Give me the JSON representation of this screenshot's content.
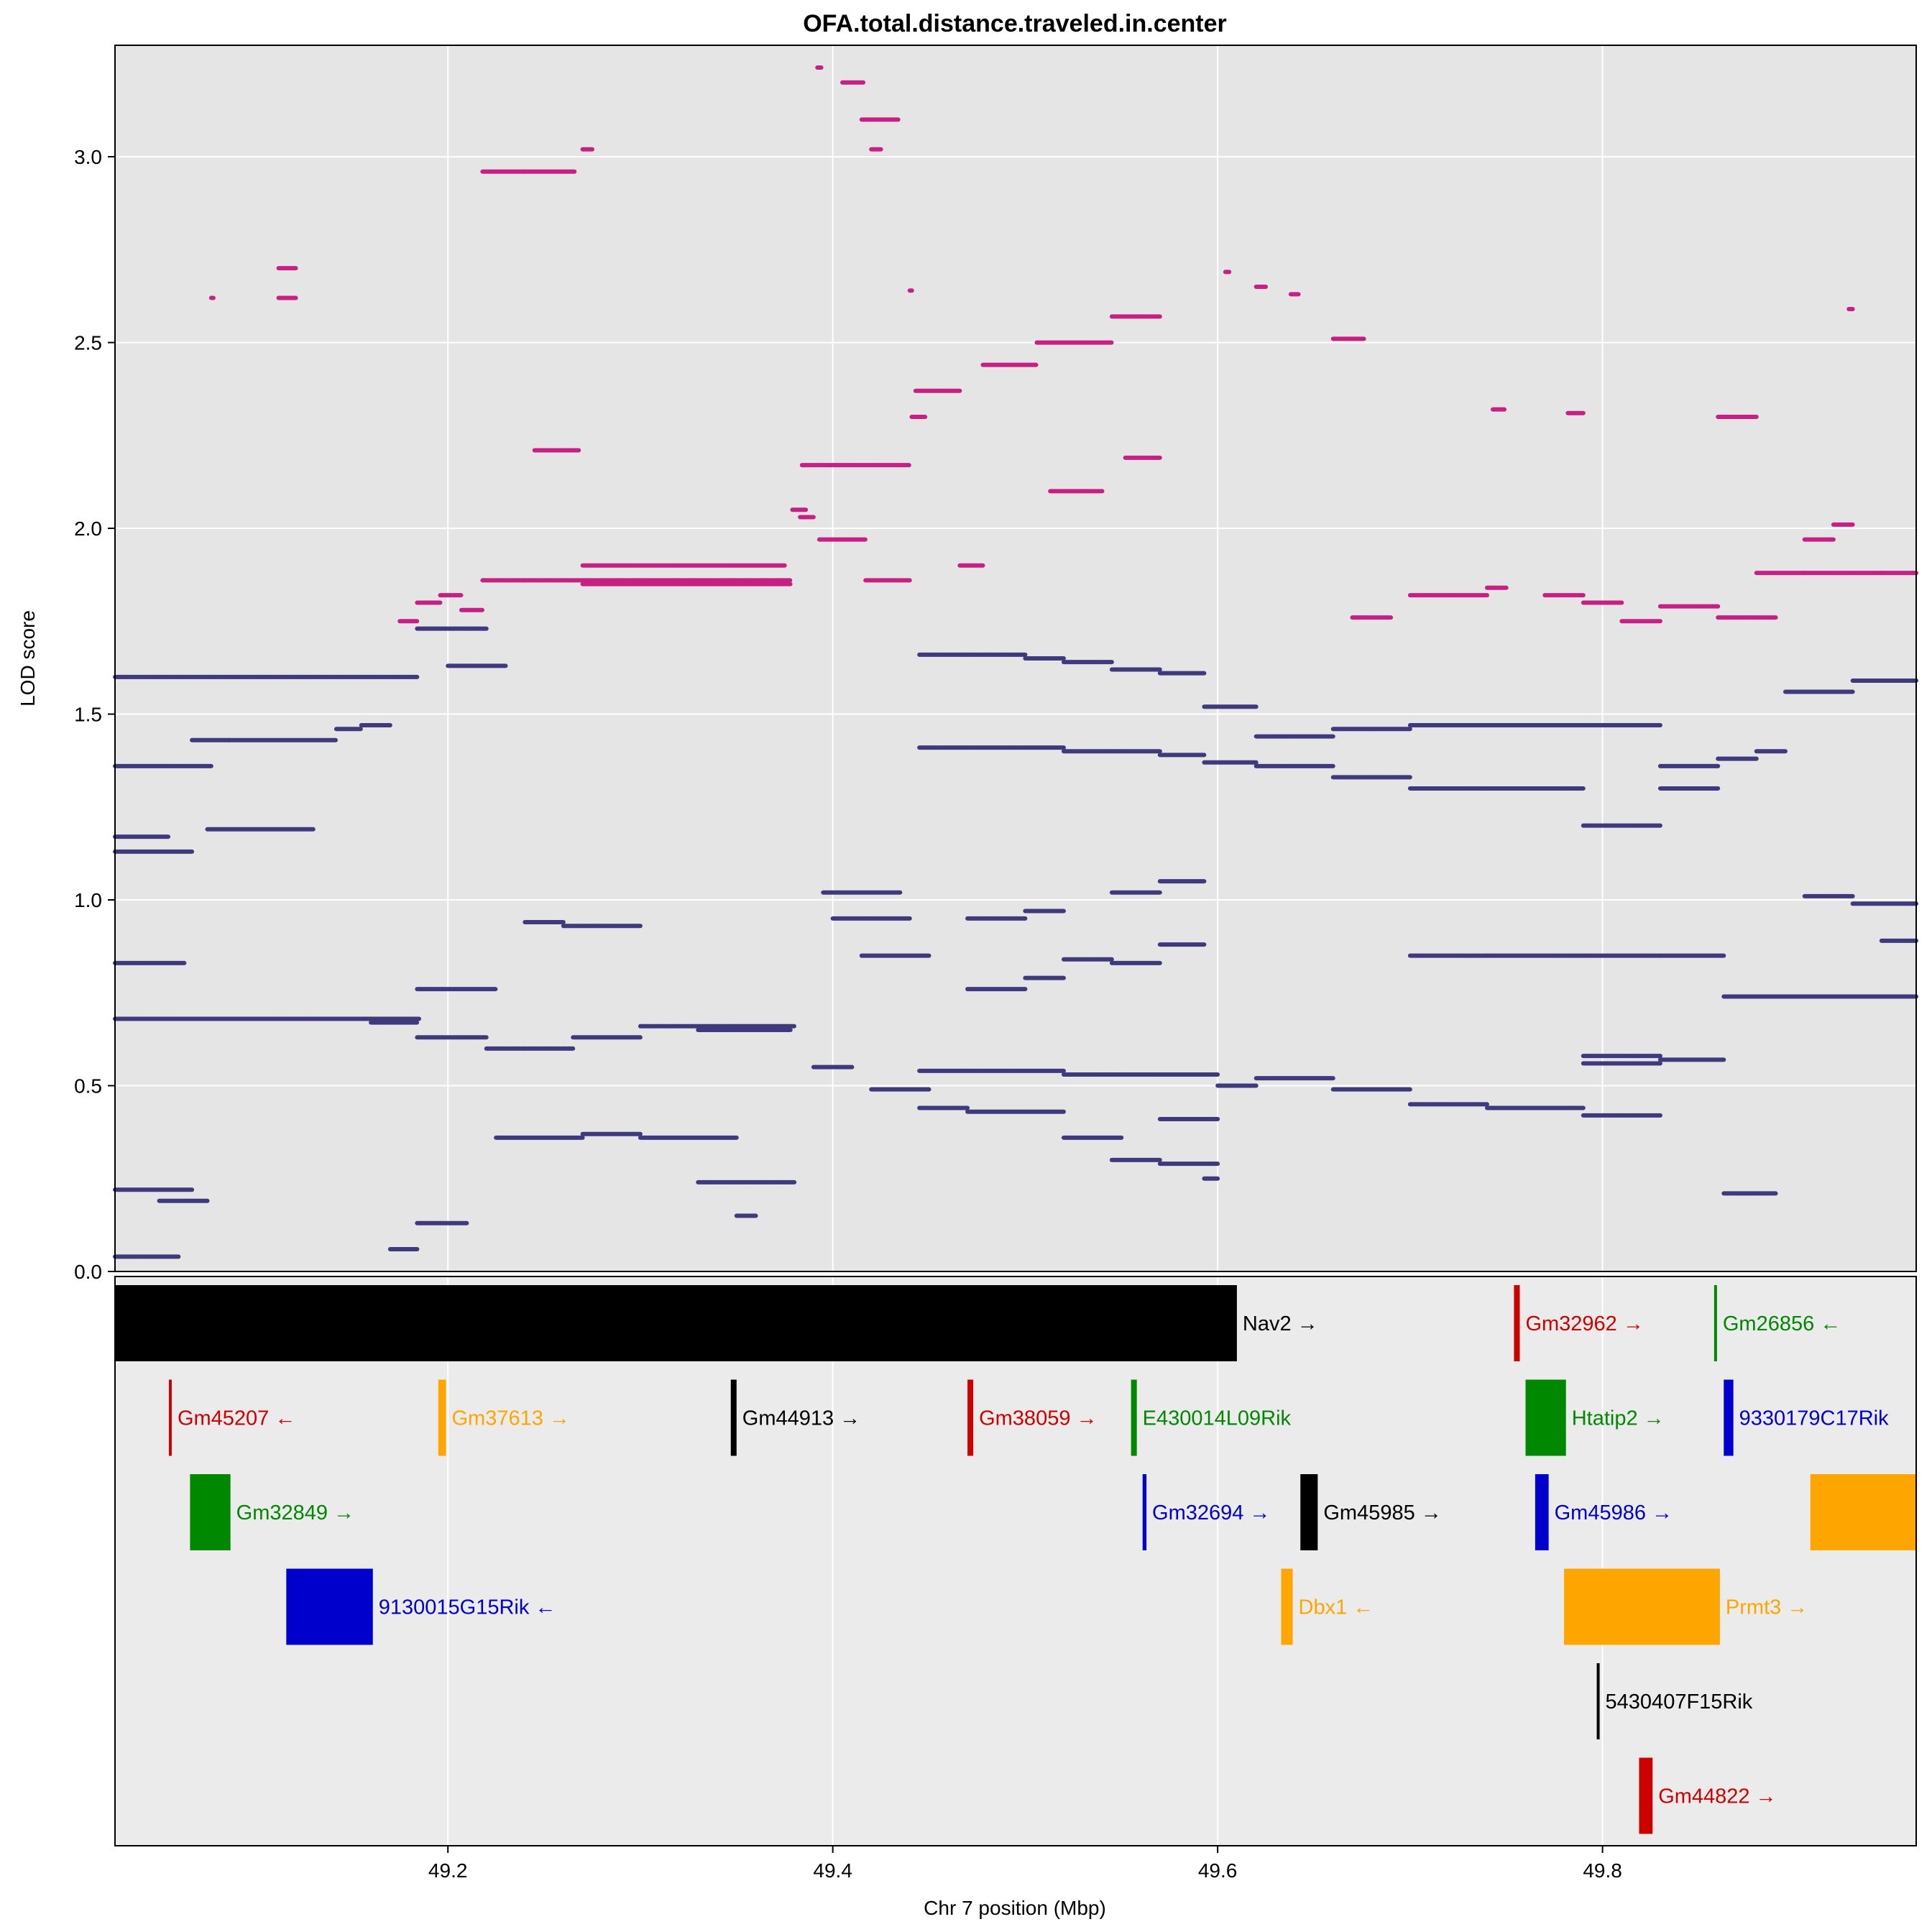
{
  "chart_data": {
    "type": "scatter",
    "title": "OFA.total.distance.traveled.in.center",
    "xlabel": "Chr 7 position (Mbp)",
    "ylabel": "LOD score",
    "xlim": [
      49.027,
      49.963
    ],
    "ylim": [
      0,
      3.3
    ],
    "x_ticks": [
      "49.2",
      "49.4",
      "49.6",
      "49.8"
    ],
    "x_tick_values": [
      49.2,
      49.4,
      49.6,
      49.8
    ],
    "y_ticks": [
      "0.0",
      "0.5",
      "1.0",
      "1.5",
      "2.0",
      "2.5",
      "3.0"
    ],
    "y_tick_values": [
      0,
      0.5,
      1.0,
      1.5,
      2.0,
      2.5,
      3.0
    ],
    "grid": true,
    "legend": "none",
    "colors": {
      "panel_bg": "#e5e5e5",
      "gene_panel_bg": "#ebebeb",
      "gridline": "#ffffff",
      "highlight_series": "#c71f84",
      "background_series": "#3f3a7e"
    },
    "series": [
      {
        "color": "#c71f84",
        "segments": [
          [
            49.077,
            49.078,
            2.62
          ],
          [
            49.112,
            49.121,
            2.7
          ],
          [
            49.112,
            49.121,
            2.62
          ],
          [
            49.175,
            49.184,
            1.75
          ],
          [
            49.184,
            49.196,
            1.8
          ],
          [
            49.196,
            49.207,
            1.82
          ],
          [
            49.207,
            49.218,
            1.78
          ],
          [
            49.218,
            49.24,
            1.86
          ],
          [
            49.218,
            49.24,
            2.96
          ],
          [
            49.24,
            49.266,
            2.96
          ],
          [
            49.245,
            49.268,
            2.21
          ],
          [
            49.27,
            49.275,
            3.02
          ],
          [
            49.27,
            49.375,
            1.9
          ],
          [
            49.24,
            49.378,
            1.86
          ],
          [
            49.27,
            49.378,
            1.85
          ],
          [
            49.379,
            49.386,
            2.05
          ],
          [
            49.383,
            49.39,
            2.03
          ],
          [
            49.392,
            49.394,
            3.24
          ],
          [
            49.384,
            49.44,
            2.17
          ],
          [
            49.393,
            49.417,
            1.97
          ],
          [
            49.405,
            49.416,
            3.2
          ],
          [
            49.415,
            49.434,
            3.1
          ],
          [
            49.417,
            49.44,
            1.86
          ],
          [
            49.42,
            49.425,
            3.02
          ],
          [
            49.44,
            49.441,
            2.64
          ],
          [
            49.441,
            49.448,
            2.3
          ],
          [
            49.443,
            49.466,
            2.37
          ],
          [
            49.466,
            49.478,
            1.9
          ],
          [
            49.478,
            49.506,
            2.44
          ],
          [
            49.506,
            49.545,
            2.5
          ],
          [
            49.513,
            49.54,
            2.1
          ],
          [
            49.545,
            49.57,
            2.57
          ],
          [
            49.552,
            49.57,
            2.19
          ],
          [
            49.604,
            49.606,
            2.69
          ],
          [
            49.62,
            49.625,
            2.65
          ],
          [
            49.638,
            49.642,
            2.63
          ],
          [
            49.66,
            49.676,
            2.51
          ],
          [
            49.67,
            49.69,
            1.76
          ],
          [
            49.7,
            49.74,
            1.82
          ],
          [
            49.74,
            49.75,
            1.84
          ],
          [
            49.743,
            49.749,
            2.32
          ],
          [
            49.77,
            49.79,
            1.82
          ],
          [
            49.782,
            49.79,
            2.31
          ],
          [
            49.79,
            49.81,
            1.8
          ],
          [
            49.81,
            49.83,
            1.75
          ],
          [
            49.83,
            49.86,
            1.79
          ],
          [
            49.86,
            49.88,
            2.3
          ],
          [
            49.86,
            49.89,
            1.76
          ],
          [
            49.88,
            49.905,
            1.88
          ],
          [
            49.905,
            49.945,
            1.88
          ],
          [
            49.905,
            49.92,
            1.97
          ],
          [
            49.92,
            49.93,
            2.01
          ],
          [
            49.945,
            49.963,
            1.88
          ],
          [
            49.928,
            49.93,
            2.59
          ]
        ]
      },
      {
        "color": "#3f3a7e",
        "segments": [
          [
            49.027,
            49.184,
            1.6
          ],
          [
            49.027,
            49.077,
            1.36
          ],
          [
            49.027,
            49.055,
            1.17
          ],
          [
            49.027,
            49.067,
            1.13
          ],
          [
            49.027,
            49.063,
            0.83
          ],
          [
            49.027,
            49.185,
            0.68
          ],
          [
            49.027,
            49.067,
            0.22
          ],
          [
            49.027,
            49.06,
            0.04
          ],
          [
            49.05,
            49.075,
            0.19
          ],
          [
            49.067,
            49.086,
            1.43
          ],
          [
            49.086,
            49.142,
            1.43
          ],
          [
            49.075,
            49.13,
            1.19
          ],
          [
            49.067,
            49.11,
            0.68
          ],
          [
            49.13,
            49.16,
            0.68
          ],
          [
            49.16,
            49.184,
            0.67
          ],
          [
            49.142,
            49.155,
            1.46
          ],
          [
            49.155,
            49.17,
            1.47
          ],
          [
            49.17,
            49.184,
            0.06
          ],
          [
            49.184,
            49.22,
            1.73
          ],
          [
            49.2,
            49.23,
            1.63
          ],
          [
            49.184,
            49.225,
            0.76
          ],
          [
            49.184,
            49.22,
            0.63
          ],
          [
            49.184,
            49.21,
            0.13
          ],
          [
            49.22,
            49.24,
            0.6
          ],
          [
            49.24,
            49.26,
            0.94
          ],
          [
            49.26,
            49.3,
            0.93
          ],
          [
            49.24,
            49.265,
            0.6
          ],
          [
            49.265,
            49.3,
            0.63
          ],
          [
            49.3,
            49.38,
            0.66
          ],
          [
            49.33,
            49.378,
            0.65
          ],
          [
            49.225,
            49.27,
            0.36
          ],
          [
            49.27,
            49.3,
            0.37
          ],
          [
            49.3,
            49.35,
            0.36
          ],
          [
            49.35,
            49.36,
            0.15
          ],
          [
            49.33,
            49.38,
            0.24
          ],
          [
            49.39,
            49.41,
            0.55
          ],
          [
            49.4,
            49.44,
            0.95
          ],
          [
            49.395,
            49.435,
            1.02
          ],
          [
            49.415,
            49.45,
            0.85
          ],
          [
            49.42,
            49.45,
            0.49
          ],
          [
            49.445,
            49.47,
            1.66
          ],
          [
            49.47,
            49.5,
            1.66
          ],
          [
            49.5,
            49.52,
            1.65
          ],
          [
            49.52,
            49.545,
            1.64
          ],
          [
            49.545,
            49.57,
            1.62
          ],
          [
            49.57,
            49.593,
            1.61
          ],
          [
            49.593,
            49.62,
            1.52
          ],
          [
            49.62,
            49.66,
            1.44
          ],
          [
            49.66,
            49.7,
            1.46
          ],
          [
            49.7,
            49.74,
            1.47
          ],
          [
            49.74,
            49.79,
            1.47
          ],
          [
            49.79,
            49.83,
            1.47
          ],
          [
            49.445,
            49.47,
            1.41
          ],
          [
            49.47,
            49.52,
            1.41
          ],
          [
            49.52,
            49.57,
            1.4
          ],
          [
            49.57,
            49.593,
            1.39
          ],
          [
            49.593,
            49.62,
            1.37
          ],
          [
            49.62,
            49.66,
            1.36
          ],
          [
            49.66,
            49.7,
            1.33
          ],
          [
            49.7,
            49.74,
            1.3
          ],
          [
            49.74,
            49.79,
            1.3
          ],
          [
            49.79,
            49.83,
            1.2
          ],
          [
            49.83,
            49.86,
            1.36
          ],
          [
            49.83,
            49.86,
            1.3
          ],
          [
            49.86,
            49.88,
            1.38
          ],
          [
            49.88,
            49.895,
            1.4
          ],
          [
            49.895,
            49.93,
            1.56
          ],
          [
            49.93,
            49.963,
            1.59
          ],
          [
            49.905,
            49.93,
            1.01
          ],
          [
            49.93,
            49.963,
            0.99
          ],
          [
            49.945,
            49.963,
            0.89
          ],
          [
            49.945,
            49.963,
            0.74
          ],
          [
            49.445,
            49.47,
            0.54
          ],
          [
            49.47,
            49.52,
            0.54
          ],
          [
            49.52,
            49.57,
            0.53
          ],
          [
            49.57,
            49.6,
            0.53
          ],
          [
            49.445,
            49.47,
            0.44
          ],
          [
            49.47,
            49.52,
            0.43
          ],
          [
            49.52,
            49.55,
            0.36
          ],
          [
            49.545,
            49.57,
            0.3
          ],
          [
            49.57,
            49.6,
            0.41
          ],
          [
            49.57,
            49.6,
            0.29
          ],
          [
            49.6,
            49.62,
            0.5
          ],
          [
            49.62,
            49.66,
            0.52
          ],
          [
            49.66,
            49.7,
            0.49
          ],
          [
            49.7,
            49.74,
            0.45
          ],
          [
            49.74,
            49.79,
            0.44
          ],
          [
            49.79,
            49.83,
            0.42
          ],
          [
            49.7,
            49.74,
            0.85
          ],
          [
            49.74,
            49.79,
            0.85
          ],
          [
            49.79,
            49.83,
            0.85
          ],
          [
            49.83,
            49.863,
            0.85
          ],
          [
            49.83,
            49.863,
            0.57
          ],
          [
            49.863,
            49.89,
            0.74
          ],
          [
            49.89,
            49.945,
            0.74
          ],
          [
            49.863,
            49.89,
            0.21
          ],
          [
            49.79,
            49.83,
            0.56
          ],
          [
            49.79,
            49.83,
            0.58
          ],
          [
            49.5,
            49.52,
            0.97
          ],
          [
            49.52,
            49.545,
            0.84
          ],
          [
            49.545,
            49.57,
            0.83
          ],
          [
            49.57,
            49.593,
            0.88
          ],
          [
            49.5,
            49.52,
            0.79
          ],
          [
            49.47,
            49.5,
            0.76
          ],
          [
            49.47,
            49.5,
            0.95
          ],
          [
            49.545,
            49.57,
            1.02
          ],
          [
            49.57,
            49.593,
            1.05
          ],
          [
            49.593,
            49.6,
            0.25
          ]
        ]
      }
    ],
    "genes": [
      {
        "name": "Nav2",
        "arrow": "→",
        "color": "#000000",
        "start": 49.027,
        "end": 49.61,
        "row": 0
      },
      {
        "name": "Gm32962",
        "arrow": "→",
        "color": "#cc0000",
        "start": 49.754,
        "end": 49.757,
        "row": 0
      },
      {
        "name": "Gm26856",
        "arrow": "←",
        "color": "#008800",
        "start": 49.858,
        "end": 49.859,
        "row": 0
      },
      {
        "name": "Gm45207",
        "arrow": "←",
        "color": "#cc0000",
        "start": 49.055,
        "end": 49.0555,
        "row": 1
      },
      {
        "name": "Gm37613",
        "arrow": "→",
        "color": "#ffa500",
        "start": 49.195,
        "end": 49.199,
        "row": 1
      },
      {
        "name": "Gm44913",
        "arrow": "→",
        "color": "#000000",
        "start": 49.347,
        "end": 49.35,
        "row": 1
      },
      {
        "name": "Gm38059",
        "arrow": "→",
        "color": "#cc0000",
        "start": 49.47,
        "end": 49.473,
        "row": 1
      },
      {
        "name": "E430014L09Rik",
        "arrow": "",
        "color": "#008800",
        "start": 49.555,
        "end": 49.558,
        "row": 1
      },
      {
        "name": "Htatip2",
        "arrow": "→",
        "color": "#008800",
        "start": 49.76,
        "end": 49.781,
        "row": 1
      },
      {
        "name": "9330179C17Rik",
        "arrow": "",
        "color": "#0000cc",
        "start": 49.863,
        "end": 49.868,
        "row": 1
      },
      {
        "name": "Gm32849",
        "arrow": "→",
        "color": "#008800",
        "start": 49.066,
        "end": 49.087,
        "row": 2
      },
      {
        "name": "Gm32694",
        "arrow": "→",
        "color": "#0000cc",
        "start": 49.561,
        "end": 49.563,
        "row": 2
      },
      {
        "name": "Gm45985",
        "arrow": "→",
        "color": "#000000",
        "start": 49.643,
        "end": 49.652,
        "row": 2
      },
      {
        "name": "Gm45986",
        "arrow": "→",
        "color": "#0000cc",
        "start": 49.765,
        "end": 49.772,
        "row": 2
      },
      {
        "name": "",
        "arrow": "",
        "color": "#ffa500",
        "start": 49.908,
        "end": 49.963,
        "row": 2
      },
      {
        "name": "9130015G15Rik",
        "arrow": "←",
        "color": "#0000cc",
        "start": 49.116,
        "end": 49.161,
        "row": 3
      },
      {
        "name": "Dbx1",
        "arrow": "←",
        "color": "#ffa500",
        "start": 49.633,
        "end": 49.639,
        "row": 3
      },
      {
        "name": "Prmt3",
        "arrow": "→",
        "color": "#ffa500",
        "start": 49.78,
        "end": 49.861,
        "row": 3
      },
      {
        "name": "5430407F15Rik",
        "arrow": "",
        "color": "#000000",
        "start": 49.797,
        "end": 49.798,
        "row": 4
      },
      {
        "name": "Gm44822",
        "arrow": "→",
        "color": "#cc0000",
        "start": 49.819,
        "end": 49.826,
        "row": 5
      }
    ]
  }
}
